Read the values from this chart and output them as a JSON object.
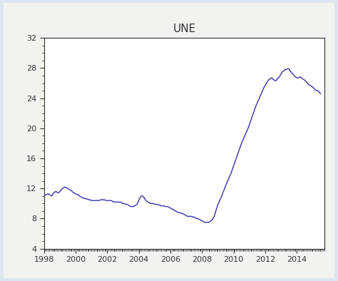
{
  "title": "UNE",
  "line_color": "#3333aa",
  "outer_background": "#dce6f0",
  "figure_background": "#f2f2ee",
  "plot_background": "#ffffff",
  "xlim": [
    1998.0,
    2015.75
  ],
  "ylim": [
    4,
    32
  ],
  "yticks": [
    4,
    8,
    12,
    16,
    20,
    24,
    28,
    32
  ],
  "xticks": [
    1998,
    2000,
    2002,
    2004,
    2006,
    2008,
    2010,
    2012,
    2014
  ],
  "data": [
    [
      1998.0,
      11.0
    ],
    [
      1998.083,
      11.1
    ],
    [
      1998.167,
      11.2
    ],
    [
      1998.25,
      11.3
    ],
    [
      1998.333,
      11.2
    ],
    [
      1998.417,
      11.1
    ],
    [
      1998.5,
      11.0
    ],
    [
      1998.583,
      11.3
    ],
    [
      1998.667,
      11.5
    ],
    [
      1998.75,
      11.6
    ],
    [
      1998.833,
      11.5
    ],
    [
      1998.917,
      11.4
    ],
    [
      1999.0,
      11.6
    ],
    [
      1999.083,
      11.8
    ],
    [
      1999.167,
      12.0
    ],
    [
      1999.25,
      12.1
    ],
    [
      1999.333,
      12.2
    ],
    [
      1999.417,
      12.1
    ],
    [
      1999.5,
      12.0
    ],
    [
      1999.583,
      11.9
    ],
    [
      1999.667,
      11.8
    ],
    [
      1999.75,
      11.7
    ],
    [
      1999.833,
      11.5
    ],
    [
      1999.917,
      11.4
    ],
    [
      2000.0,
      11.3
    ],
    [
      2000.083,
      11.2
    ],
    [
      2000.167,
      11.2
    ],
    [
      2000.25,
      11.0
    ],
    [
      2000.333,
      10.9
    ],
    [
      2000.417,
      10.8
    ],
    [
      2000.5,
      10.7
    ],
    [
      2000.583,
      10.7
    ],
    [
      2000.667,
      10.6
    ],
    [
      2000.75,
      10.6
    ],
    [
      2000.833,
      10.5
    ],
    [
      2000.917,
      10.5
    ],
    [
      2001.0,
      10.4
    ],
    [
      2001.083,
      10.4
    ],
    [
      2001.167,
      10.4
    ],
    [
      2001.25,
      10.4
    ],
    [
      2001.333,
      10.4
    ],
    [
      2001.417,
      10.4
    ],
    [
      2001.5,
      10.4
    ],
    [
      2001.583,
      10.5
    ],
    [
      2001.667,
      10.5
    ],
    [
      2001.75,
      10.5
    ],
    [
      2001.833,
      10.5
    ],
    [
      2001.917,
      10.4
    ],
    [
      2002.0,
      10.4
    ],
    [
      2002.083,
      10.4
    ],
    [
      2002.167,
      10.4
    ],
    [
      2002.25,
      10.4
    ],
    [
      2002.333,
      10.3
    ],
    [
      2002.417,
      10.2
    ],
    [
      2002.5,
      10.2
    ],
    [
      2002.583,
      10.2
    ],
    [
      2002.667,
      10.2
    ],
    [
      2002.75,
      10.2
    ],
    [
      2002.833,
      10.2
    ],
    [
      2002.917,
      10.1
    ],
    [
      2003.0,
      10.0
    ],
    [
      2003.083,
      10.0
    ],
    [
      2003.167,
      9.9
    ],
    [
      2003.25,
      9.9
    ],
    [
      2003.333,
      9.8
    ],
    [
      2003.417,
      9.7
    ],
    [
      2003.5,
      9.6
    ],
    [
      2003.583,
      9.6
    ],
    [
      2003.667,
      9.6
    ],
    [
      2003.75,
      9.7
    ],
    [
      2003.833,
      9.8
    ],
    [
      2003.917,
      10.0
    ],
    [
      2004.0,
      10.4
    ],
    [
      2004.083,
      10.8
    ],
    [
      2004.167,
      11.0
    ],
    [
      2004.25,
      11.0
    ],
    [
      2004.333,
      10.8
    ],
    [
      2004.417,
      10.5
    ],
    [
      2004.5,
      10.3
    ],
    [
      2004.583,
      10.2
    ],
    [
      2004.667,
      10.1
    ],
    [
      2004.75,
      10.0
    ],
    [
      2004.833,
      10.0
    ],
    [
      2004.917,
      10.0
    ],
    [
      2005.0,
      9.9
    ],
    [
      2005.083,
      9.9
    ],
    [
      2005.167,
      9.9
    ],
    [
      2005.25,
      9.8
    ],
    [
      2005.333,
      9.8
    ],
    [
      2005.417,
      9.7
    ],
    [
      2005.5,
      9.7
    ],
    [
      2005.583,
      9.7
    ],
    [
      2005.667,
      9.6
    ],
    [
      2005.75,
      9.6
    ],
    [
      2005.833,
      9.6
    ],
    [
      2005.917,
      9.5
    ],
    [
      2006.0,
      9.4
    ],
    [
      2006.083,
      9.3
    ],
    [
      2006.167,
      9.2
    ],
    [
      2006.25,
      9.1
    ],
    [
      2006.333,
      9.0
    ],
    [
      2006.417,
      8.9
    ],
    [
      2006.5,
      8.8
    ],
    [
      2006.583,
      8.8
    ],
    [
      2006.667,
      8.7
    ],
    [
      2006.75,
      8.7
    ],
    [
      2006.833,
      8.6
    ],
    [
      2006.917,
      8.5
    ],
    [
      2007.0,
      8.4
    ],
    [
      2007.083,
      8.3
    ],
    [
      2007.167,
      8.3
    ],
    [
      2007.25,
      8.3
    ],
    [
      2007.333,
      8.3
    ],
    [
      2007.417,
      8.2
    ],
    [
      2007.5,
      8.2
    ],
    [
      2007.583,
      8.1
    ],
    [
      2007.667,
      8.0
    ],
    [
      2007.75,
      8.0
    ],
    [
      2007.833,
      7.9
    ],
    [
      2007.917,
      7.8
    ],
    [
      2008.0,
      7.7
    ],
    [
      2008.083,
      7.6
    ],
    [
      2008.167,
      7.5
    ],
    [
      2008.25,
      7.5
    ],
    [
      2008.333,
      7.5
    ],
    [
      2008.417,
      7.5
    ],
    [
      2008.5,
      7.6
    ],
    [
      2008.583,
      7.7
    ],
    [
      2008.667,
      7.9
    ],
    [
      2008.75,
      8.2
    ],
    [
      2008.833,
      8.7
    ],
    [
      2008.917,
      9.3
    ],
    [
      2009.0,
      9.8
    ],
    [
      2009.083,
      10.2
    ],
    [
      2009.167,
      10.6
    ],
    [
      2009.25,
      11.0
    ],
    [
      2009.333,
      11.5
    ],
    [
      2009.417,
      11.9
    ],
    [
      2009.5,
      12.4
    ],
    [
      2009.583,
      12.8
    ],
    [
      2009.667,
      13.2
    ],
    [
      2009.75,
      13.6
    ],
    [
      2009.833,
      14.0
    ],
    [
      2009.917,
      14.5
    ],
    [
      2010.0,
      15.0
    ],
    [
      2010.083,
      15.5
    ],
    [
      2010.167,
      16.0
    ],
    [
      2010.25,
      16.5
    ],
    [
      2010.333,
      17.0
    ],
    [
      2010.417,
      17.5
    ],
    [
      2010.5,
      18.0
    ],
    [
      2010.583,
      18.4
    ],
    [
      2010.667,
      18.8
    ],
    [
      2010.75,
      19.2
    ],
    [
      2010.833,
      19.6
    ],
    [
      2010.917,
      20.0
    ],
    [
      2011.0,
      20.5
    ],
    [
      2011.083,
      21.0
    ],
    [
      2011.167,
      21.5
    ],
    [
      2011.25,
      22.0
    ],
    [
      2011.333,
      22.5
    ],
    [
      2011.417,
      23.0
    ],
    [
      2011.5,
      23.4
    ],
    [
      2011.583,
      23.8
    ],
    [
      2011.667,
      24.2
    ],
    [
      2011.75,
      24.6
    ],
    [
      2011.833,
      25.0
    ],
    [
      2011.917,
      25.4
    ],
    [
      2012.0,
      25.7
    ],
    [
      2012.083,
      26.0
    ],
    [
      2012.167,
      26.3
    ],
    [
      2012.25,
      26.5
    ],
    [
      2012.333,
      26.6
    ],
    [
      2012.417,
      26.7
    ],
    [
      2012.5,
      26.5
    ],
    [
      2012.583,
      26.4
    ],
    [
      2012.667,
      26.3
    ],
    [
      2012.75,
      26.5
    ],
    [
      2012.833,
      26.7
    ],
    [
      2012.917,
      26.9
    ],
    [
      2013.0,
      27.2
    ],
    [
      2013.083,
      27.5
    ],
    [
      2013.167,
      27.6
    ],
    [
      2013.25,
      27.8
    ],
    [
      2013.333,
      27.8
    ],
    [
      2013.417,
      27.9
    ],
    [
      2013.5,
      27.9
    ],
    [
      2013.583,
      27.6
    ],
    [
      2013.667,
      27.4
    ],
    [
      2013.75,
      27.2
    ],
    [
      2013.833,
      27.0
    ],
    [
      2013.917,
      26.8
    ],
    [
      2014.0,
      26.7
    ],
    [
      2014.083,
      26.7
    ],
    [
      2014.167,
      26.8
    ],
    [
      2014.25,
      26.8
    ],
    [
      2014.333,
      26.6
    ],
    [
      2014.417,
      26.5
    ],
    [
      2014.5,
      26.4
    ],
    [
      2014.583,
      26.2
    ],
    [
      2014.667,
      26.0
    ],
    [
      2014.75,
      25.8
    ],
    [
      2014.833,
      25.7
    ],
    [
      2014.917,
      25.6
    ],
    [
      2015.0,
      25.5
    ],
    [
      2015.083,
      25.3
    ],
    [
      2015.167,
      25.1
    ],
    [
      2015.25,
      25.0
    ],
    [
      2015.333,
      25.0
    ],
    [
      2015.417,
      24.8
    ],
    [
      2015.5,
      24.6
    ]
  ]
}
